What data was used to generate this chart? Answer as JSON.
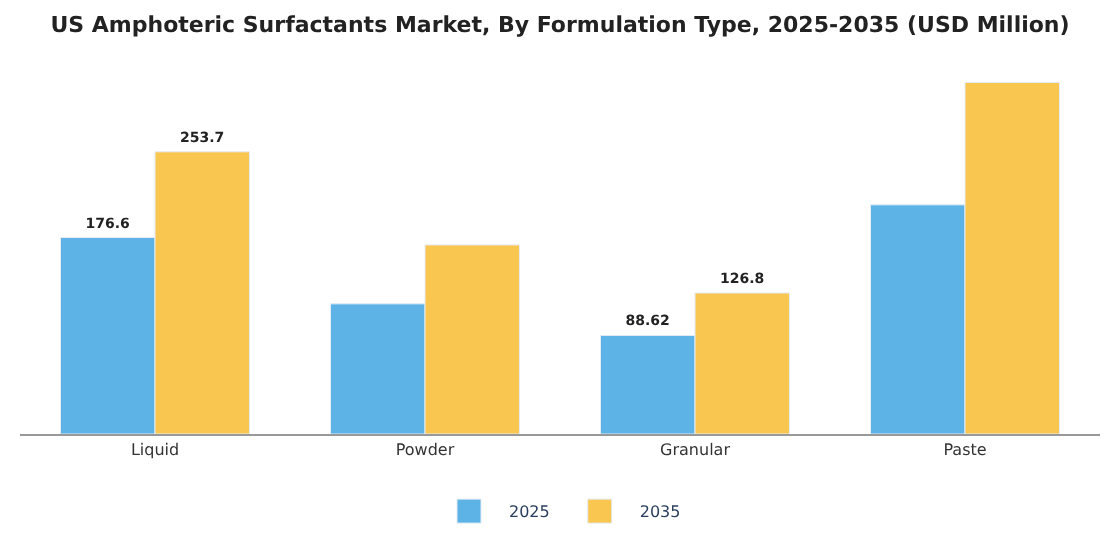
{
  "chart_data": {
    "type": "bar",
    "title": "US Amphoteric Surfactants Market, By Formulation Type, 2025-2035 (USD Million)",
    "categories": [
      "Liquid",
      "Powder",
      "Granular",
      "Paste"
    ],
    "series": [
      {
        "name": "2025",
        "color": "#5db3e6",
        "values": [
          176.6,
          117,
          88.62,
          206
        ],
        "value_labels": [
          "176.6",
          null,
          "88.62",
          null
        ]
      },
      {
        "name": "2035",
        "color": "#f9c74f",
        "values": [
          253.7,
          170,
          126.8,
          316
        ],
        "value_labels": [
          "253.7",
          null,
          "126.8",
          null
        ]
      }
    ],
    "legend": "bottom",
    "tick_labels": "x"
  }
}
